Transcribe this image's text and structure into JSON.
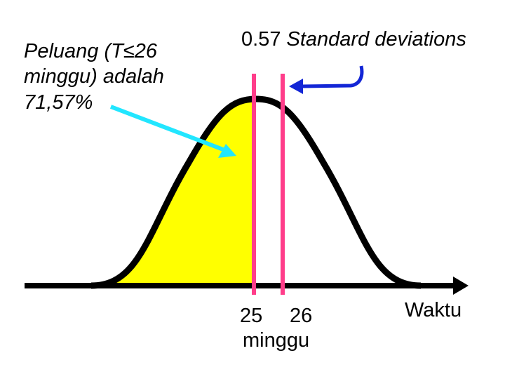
{
  "slide": {
    "probability_text": {
      "line1": "Peluang (T≤26",
      "line2": "minggu) adalah",
      "line3": "71,57%"
    },
    "sd_label": {
      "value": "0.57",
      "unit": "Standard deviations"
    },
    "axis_label": "Waktu",
    "tick_labels": {
      "mean": "25",
      "target": "26",
      "unit": "minggu"
    },
    "colors": {
      "curve": "#000000",
      "shaded_area": "#ffff00",
      "markers": "#ff3d8a",
      "probability_arrow": "#22e6ff",
      "sd_arrow": "#1326d6"
    }
  }
}
